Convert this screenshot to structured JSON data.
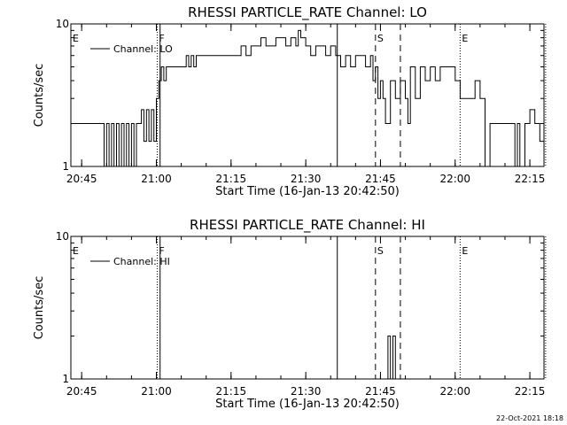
{
  "footer": {
    "timestamp": "22-Oct-2021 18:18"
  },
  "chart_data": [
    {
      "type": "line",
      "title": "RHESSI PARTICLE_RATE Channel: LO",
      "xlabel": "Start Time (16-Jan-13 20:42:50)",
      "ylabel": "Counts/sec",
      "y_scale": "log",
      "ylim": [
        1,
        10
      ],
      "y_tick_labels": [
        "1",
        "10"
      ],
      "xlim_minutes_after_start": [
        0,
        95
      ],
      "x_tick_labels": [
        "20:45",
        "21:00",
        "21:15",
        "21:30",
        "21:45",
        "22:00",
        "22:15"
      ],
      "legend": {
        "placement": "top-left",
        "entries": [
          "Channel: LO"
        ]
      },
      "series": [
        {
          "name": "Channel: LO",
          "step": true,
          "x": [
            "20:42:50",
            "20:49:30",
            "20:50:00",
            "20:50:30",
            "20:51:00",
            "20:51:30",
            "20:52:00",
            "20:52:30",
            "20:53:00",
            "20:53:30",
            "20:54:00",
            "20:54:30",
            "20:55:00",
            "20:55:30",
            "20:56:00",
            "20:56:30",
            "20:57:00",
            "20:57:30",
            "20:58:00",
            "20:58:30",
            "20:59:00",
            "20:59:30",
            "21:00:00",
            "21:00:30",
            "21:01:00",
            "21:01:30",
            "21:02:00",
            "21:02:30",
            "21:03:00",
            "21:03:30",
            "21:04:00",
            "21:05:00",
            "21:06:00",
            "21:06:30",
            "21:07:00",
            "21:07:30",
            "21:08:00",
            "21:09:00",
            "21:10:00",
            "21:11:00",
            "21:12:00",
            "21:13:00",
            "21:14:00",
            "21:15:00",
            "21:16:00",
            "21:17:00",
            "21:18:00",
            "21:19:00",
            "21:20:00",
            "21:20:30",
            "21:21:00",
            "21:22:00",
            "21:23:00",
            "21:24:00",
            "21:25:00",
            "21:26:00",
            "21:27:00",
            "21:28:00",
            "21:28:30",
            "21:29:00",
            "21:30:00",
            "21:31:00",
            "21:32:00",
            "21:33:00",
            "21:34:00",
            "21:35:00",
            "21:36:00",
            "21:37:00",
            "21:38:00",
            "21:39:00",
            "21:40:00",
            "21:41:00",
            "21:42:00",
            "21:43:00",
            "21:43:30",
            "21:44:00",
            "21:44:30",
            "21:45:00",
            "21:45:30",
            "21:46:00",
            "21:47:00",
            "21:48:00",
            "21:49:00",
            "21:50:00",
            "21:50:30",
            "21:51:00",
            "21:52:00",
            "21:53:00",
            "21:54:00",
            "21:55:00",
            "21:56:00",
            "21:57:00",
            "21:58:00",
            "21:59:00",
            "22:00:00",
            "22:01:00",
            "22:02:00",
            "22:03:00",
            "22:04:00",
            "22:05:00",
            "22:06:00",
            "22:07:00",
            "22:08:00",
            "22:09:00",
            "22:10:00",
            "22:11:00",
            "22:12:00",
            "22:12:30",
            "22:13:00",
            "22:14:00",
            "22:15:00",
            "22:16:00",
            "22:17:00",
            "22:17:30",
            "22:18:00"
          ],
          "values": [
            2,
            1,
            2,
            1,
            2,
            1,
            2,
            1,
            2,
            1,
            2,
            1,
            2,
            1,
            2,
            2,
            2.5,
            1.5,
            2.5,
            1.5,
            2.5,
            1.5,
            3,
            4,
            5,
            4,
            5,
            5,
            5,
            5,
            5,
            5,
            6,
            5,
            6,
            5,
            6,
            6,
            6,
            6,
            6,
            6,
            6,
            6,
            6,
            7,
            6,
            7,
            7,
            7,
            8,
            7,
            7,
            8,
            8,
            7,
            8,
            7,
            9,
            8,
            7,
            6,
            7,
            7,
            6,
            7,
            6,
            5,
            6,
            5,
            6,
            6,
            5,
            6,
            4,
            5,
            3,
            4,
            3,
            2,
            4,
            3,
            4,
            3,
            2,
            5,
            3,
            5,
            4,
            5,
            4,
            5,
            5,
            5,
            4,
            3,
            3,
            3,
            4,
            3,
            1,
            2,
            2,
            2,
            2,
            2,
            1,
            2,
            1,
            2,
            2.5,
            2,
            1.5,
            1.5,
            2
          ],
          "color": "#000000"
        }
      ],
      "markers": [
        {
          "label": "E",
          "time": "20:42:50",
          "style": "dotted"
        },
        {
          "label": "F",
          "time": "21:00:10",
          "style": "dotted"
        },
        {
          "label": "",
          "time": "21:00:45",
          "style": "solid"
        },
        {
          "label": "",
          "time": "21:36:20",
          "style": "solid"
        },
        {
          "label": "S",
          "time": "21:44:00",
          "style": "dashed"
        },
        {
          "label": "",
          "time": "21:49:00",
          "style": "dashed"
        },
        {
          "label": "E",
          "time": "22:01:00",
          "style": "dotted"
        },
        {
          "label": "",
          "time": "22:18:10",
          "style": "dotted"
        }
      ]
    },
    {
      "type": "line",
      "title": "RHESSI PARTICLE_RATE Channel: HI",
      "xlabel": "Start Time (16-Jan-13 20:42:50)",
      "ylabel": "Counts/sec",
      "y_scale": "log",
      "ylim": [
        1,
        10
      ],
      "y_tick_labels": [
        "1",
        "10"
      ],
      "xlim_minutes_after_start": [
        0,
        95
      ],
      "x_tick_labels": [
        "20:45",
        "21:00",
        "21:15",
        "21:30",
        "21:45",
        "22:00",
        "22:15"
      ],
      "legend": {
        "placement": "top-left",
        "entries": [
          "Channel: HI"
        ]
      },
      "series": [
        {
          "name": "Channel: HI",
          "step": true,
          "x": [
            "20:42:50",
            "21:46:30",
            "21:47:00",
            "21:47:30",
            "21:48:00",
            "21:48:30",
            "22:18:00"
          ],
          "values": [
            1,
            2,
            1,
            2,
            1,
            1,
            1
          ],
          "color": "#000000"
        }
      ],
      "markers": [
        {
          "label": "E",
          "time": "20:42:50",
          "style": "dotted"
        },
        {
          "label": "F",
          "time": "21:00:10",
          "style": "dotted"
        },
        {
          "label": "",
          "time": "21:00:45",
          "style": "solid"
        },
        {
          "label": "",
          "time": "21:36:20",
          "style": "solid"
        },
        {
          "label": "S",
          "time": "21:44:00",
          "style": "dashed"
        },
        {
          "label": "",
          "time": "21:49:00",
          "style": "dashed"
        },
        {
          "label": "E",
          "time": "22:01:00",
          "style": "dotted"
        },
        {
          "label": "",
          "time": "22:18:10",
          "style": "dotted"
        }
      ]
    }
  ]
}
